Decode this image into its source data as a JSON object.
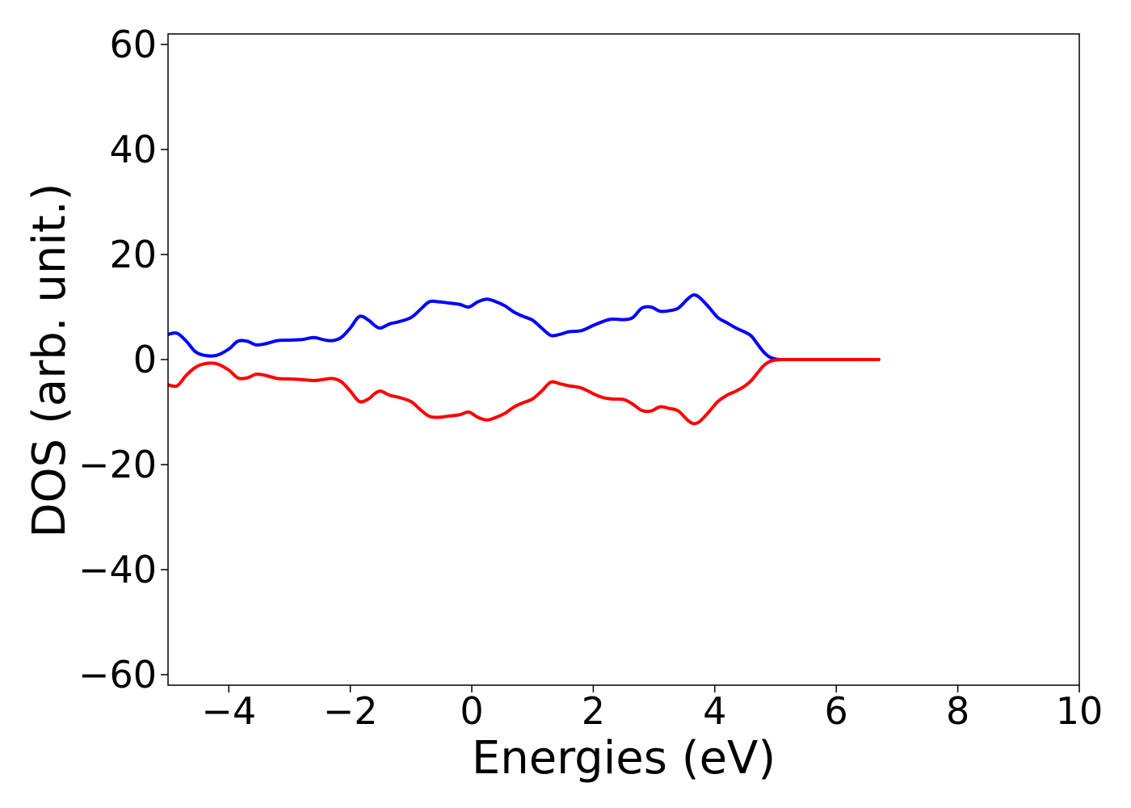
{
  "chart_data": {
    "type": "line",
    "title": "",
    "xlabel": "Energies (eV)",
    "ylabel": "DOS (arb. unit.)",
    "xlim": [
      -5,
      10
    ],
    "ylim": [
      -62,
      62
    ],
    "xticks": [
      -4,
      -2,
      0,
      2,
      4,
      6,
      8,
      10
    ],
    "yticks": [
      -60,
      -40,
      -20,
      0,
      20,
      40,
      60
    ],
    "xtick_labels": [
      "−4",
      "−2",
      "0",
      "2",
      "4",
      "6",
      "8",
      "10"
    ],
    "ytick_labels": [
      "−60",
      "−40",
      "−20",
      "0",
      "20",
      "40",
      "60"
    ],
    "grid": false,
    "legend": "none",
    "series": [
      {
        "color": "#0000ff",
        "x": [
          -5.0,
          -4.85,
          -4.7,
          -4.55,
          -4.4,
          -4.2,
          -4.0,
          -3.85,
          -3.7,
          -3.55,
          -3.4,
          -3.2,
          -3.0,
          -2.8,
          -2.6,
          -2.45,
          -2.3,
          -2.15,
          -2.0,
          -1.85,
          -1.7,
          -1.6,
          -1.5,
          -1.35,
          -1.2,
          -1.0,
          -0.85,
          -0.7,
          -0.55,
          -0.4,
          -0.2,
          -0.05,
          0.1,
          0.25,
          0.4,
          0.55,
          0.7,
          0.85,
          1.0,
          1.15,
          1.3,
          1.45,
          1.6,
          1.8,
          2.0,
          2.15,
          2.3,
          2.5,
          2.65,
          2.8,
          2.95,
          3.1,
          3.25,
          3.4,
          3.55,
          3.65,
          3.75,
          3.9,
          4.05,
          4.2,
          4.35,
          4.5,
          4.6,
          4.7,
          4.8,
          4.9,
          5.0,
          5.1,
          5.3,
          5.6,
          6.0,
          6.4,
          6.7
        ],
        "y": [
          4.8,
          5.0,
          3.5,
          1.5,
          0.8,
          0.8,
          2.0,
          3.5,
          3.5,
          2.8,
          3.0,
          3.6,
          3.7,
          3.8,
          4.2,
          3.8,
          3.6,
          4.2,
          6.0,
          8.2,
          7.5,
          6.5,
          6.0,
          6.8,
          7.2,
          8.0,
          9.5,
          11.0,
          11.0,
          10.8,
          10.5,
          10.0,
          11.0,
          11.5,
          11.0,
          10.2,
          9.0,
          8.2,
          7.5,
          6.0,
          4.6,
          4.8,
          5.3,
          5.5,
          6.5,
          7.2,
          7.7,
          7.6,
          8.0,
          9.8,
          10.0,
          9.2,
          9.3,
          9.8,
          11.5,
          12.3,
          11.8,
          10.0,
          8.0,
          7.0,
          6.0,
          5.2,
          4.5,
          3.0,
          1.5,
          0.5,
          0.1,
          0.0,
          0.0,
          0.0,
          0.0,
          0.0,
          0.0
        ]
      },
      {
        "color": "#ff0000",
        "x": [
          -5.0,
          -4.85,
          -4.7,
          -4.55,
          -4.4,
          -4.2,
          -4.0,
          -3.85,
          -3.7,
          -3.55,
          -3.4,
          -3.2,
          -3.0,
          -2.8,
          -2.6,
          -2.45,
          -2.3,
          -2.15,
          -2.0,
          -1.85,
          -1.7,
          -1.6,
          -1.5,
          -1.35,
          -1.2,
          -1.0,
          -0.85,
          -0.7,
          -0.55,
          -0.4,
          -0.2,
          -0.05,
          0.1,
          0.25,
          0.4,
          0.55,
          0.7,
          0.85,
          1.0,
          1.15,
          1.3,
          1.45,
          1.6,
          1.8,
          2.0,
          2.15,
          2.3,
          2.5,
          2.65,
          2.8,
          2.95,
          3.1,
          3.25,
          3.4,
          3.55,
          3.65,
          3.75,
          3.9,
          4.05,
          4.2,
          4.35,
          4.5,
          4.6,
          4.7,
          4.8,
          4.9,
          5.0,
          5.1,
          5.3,
          5.6,
          6.0,
          6.4,
          6.7
        ],
        "y": [
          -4.8,
          -5.0,
          -3.0,
          -1.5,
          -0.8,
          -0.8,
          -2.0,
          -3.5,
          -3.5,
          -2.8,
          -3.0,
          -3.6,
          -3.7,
          -3.8,
          -4.0,
          -3.8,
          -3.6,
          -4.2,
          -6.0,
          -8.0,
          -7.5,
          -6.5,
          -6.0,
          -6.8,
          -7.2,
          -8.0,
          -9.5,
          -10.8,
          -11.0,
          -10.8,
          -10.5,
          -10.0,
          -11.0,
          -11.5,
          -11.0,
          -10.2,
          -9.0,
          -8.2,
          -7.5,
          -6.0,
          -4.3,
          -4.6,
          -5.0,
          -5.4,
          -6.5,
          -7.2,
          -7.5,
          -7.6,
          -8.5,
          -9.7,
          -9.8,
          -9.0,
          -9.3,
          -9.8,
          -11.5,
          -12.2,
          -11.8,
          -10.0,
          -8.0,
          -6.8,
          -6.0,
          -5.0,
          -4.0,
          -2.6,
          -1.2,
          -0.4,
          -0.1,
          0.0,
          0.0,
          0.0,
          0.0,
          0.0,
          0.0
        ]
      }
    ]
  }
}
